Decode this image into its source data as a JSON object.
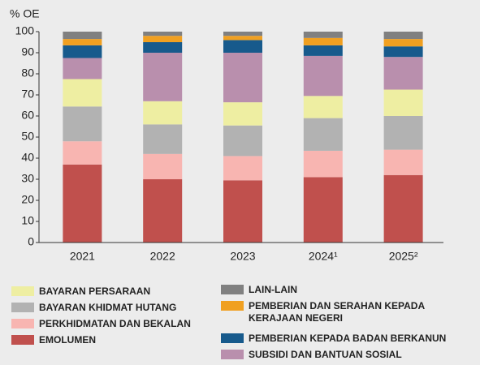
{
  "chart_data": {
    "type": "stacked_bar",
    "y_label": "% OE",
    "categories": [
      "2021",
      "2022",
      "2023",
      "2024¹",
      "2025²"
    ],
    "series": [
      {
        "name": "EMOLUMEN",
        "color": "#c0504d",
        "values": [
          37,
          30,
          29.5,
          31,
          32
        ]
      },
      {
        "name": "PERKHIDMATAN DAN BEKALAN",
        "color": "#f8b5b1",
        "values": [
          11,
          12,
          11.5,
          12.5,
          12
        ]
      },
      {
        "name": "BAYARAN KHIDMAT HUTANG",
        "color": "#b2b2b2",
        "values": [
          16.5,
          14,
          14.5,
          15.5,
          16
        ]
      },
      {
        "name": "BAYARAN PERSARAAN",
        "color": "#eeeea2",
        "values": [
          13,
          11,
          11,
          10.5,
          12.5
        ]
      },
      {
        "name": "SUBSIDI DAN BANTUAN SOSIAL",
        "color": "#b98fad",
        "values": [
          10,
          23,
          23.5,
          19,
          15.5
        ]
      },
      {
        "name": "PEMBERIAN KEPADA BADAN BERKANUN",
        "color": "#175a8c",
        "values": [
          6,
          5,
          6,
          5,
          5
        ]
      },
      {
        "name": "PEMBERIAN DAN SERAHAN KEPADA KERAJAAN NEGERI",
        "color": "#f0a021",
        "values": [
          3,
          3,
          2,
          3.5,
          3.5
        ]
      },
      {
        "name": "LAIN-LAIN",
        "color": "#808080",
        "values": [
          3.5,
          2,
          2,
          3,
          3.5
        ]
      }
    ],
    "ylim": [
      0,
      100
    ],
    "yticks": [
      0,
      10,
      20,
      30,
      40,
      50,
      60,
      70,
      80,
      90,
      100
    ]
  }
}
